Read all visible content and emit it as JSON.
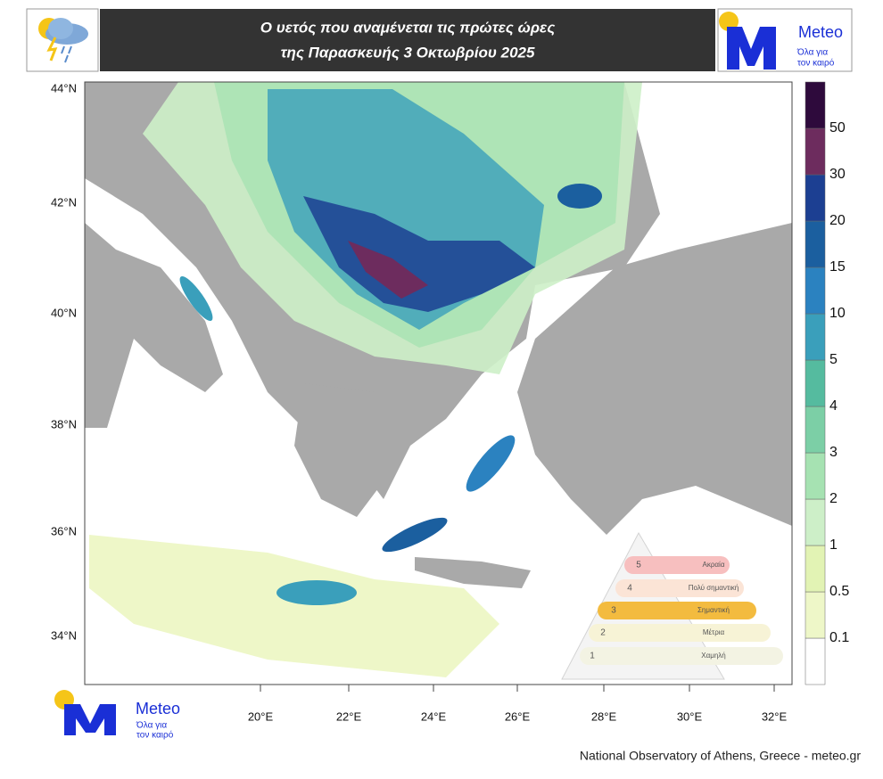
{
  "header": {
    "title_lines": [
      "Ο υετός που αναμένεται τις πρώτες ώρες",
      "της Παρασκευής 3 Οκτωβρίου 2025"
    ],
    "logo": {
      "name": "Meteo",
      "slogan_lines": [
        "Όλα για",
        "τον καιρό"
      ]
    }
  },
  "map": {
    "lat_labels": [
      "44°N",
      "42°N",
      "40°N",
      "38°N",
      "36°N",
      "34°N"
    ],
    "lon_labels": [
      "20°E",
      "22°E",
      "24°E",
      "26°E",
      "28°E",
      "30°E",
      "32°E"
    ]
  },
  "colorbar": {
    "levels": [
      0.1,
      0.5,
      1,
      2,
      3,
      4,
      5,
      10,
      15,
      20,
      30,
      50
    ],
    "colors": [
      "#ffffff",
      "#eef7c8",
      "#e2f3b4",
      "#cdefc8",
      "#a6e2b2",
      "#7ccfa6",
      "#55bb9f",
      "#3a9fbb",
      "#2b82c0",
      "#1b5f9f",
      "#1c3f92",
      "#6d2c5e",
      "#2e0a3c"
    ]
  },
  "inset": {
    "levels": [
      "5",
      "4",
      "3",
      "2",
      "1"
    ],
    "labels": [
      "Ακραία",
      "Πολύ σημαντική",
      "Σημαντική",
      "Μέτρια",
      "Χαμηλή"
    ]
  },
  "footer": {
    "logo": {
      "name": "Meteo",
      "slogan_lines": [
        "Όλα για",
        "τον καιρό"
      ]
    },
    "credit": "National Observatory of Athens, Greece - meteo.gr"
  }
}
